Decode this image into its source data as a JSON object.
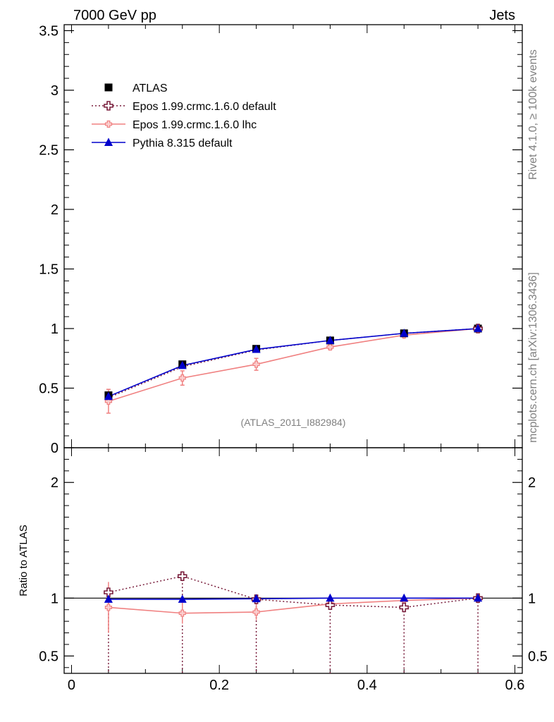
{
  "header": {
    "left": "7000 GeV pp",
    "right": "Jets"
  },
  "side_labels": {
    "rivet": "Rivet 4.1.0, ≥ 100k events",
    "mcplots": "mcplots.cern.ch [arXiv:1306.3436]"
  },
  "analysis_tag": "(ATLAS_2011_I882984)",
  "colors": {
    "atlas": "#000000",
    "epos_default": "#7a1f3d",
    "epos_lhc": "#f08080",
    "pythia": "#0000cc"
  },
  "chart_data": [
    {
      "type": "line",
      "panel": "main",
      "title": "",
      "xlabel": "",
      "ylabel": "",
      "xlim": [
        -0.01,
        0.61
      ],
      "ylim": [
        0,
        3.55
      ],
      "y_ticks": [
        0,
        0.5,
        1,
        1.5,
        2,
        2.5,
        3,
        3.5
      ],
      "y_tick_labels": [
        "0",
        "0.5",
        "1",
        "1.5",
        "2",
        "2.5",
        "3",
        "3.5"
      ],
      "x": [
        0.05,
        0.15,
        0.25,
        0.35,
        0.45,
        0.55
      ],
      "legend_position": "top-left",
      "series": [
        {
          "name": "ATLAS",
          "style": "data-square",
          "values": [
            0.44,
            0.7,
            0.83,
            0.9,
            0.96,
            1.0
          ],
          "errors": [
            0.02,
            0.02,
            0.015,
            0.01,
            0.01,
            0.0
          ]
        },
        {
          "name": "Epos 1.99.crmc.1.6.0 default",
          "style": "open-cross-dotted",
          "values": [
            0.42,
            0.68,
            0.82,
            0.9,
            0.96,
            1.0
          ],
          "errors": [
            0.0,
            0.0,
            0.0,
            0.0,
            0.0,
            0.0
          ]
        },
        {
          "name": "Epos 1.99.crmc.1.6.0 lhc",
          "style": "small-cross-solid",
          "values": [
            0.39,
            0.585,
            0.7,
            0.845,
            0.945,
            1.0
          ],
          "errors": [
            0.1,
            0.06,
            0.05,
            0.02,
            0.015,
            0.0
          ]
        },
        {
          "name": "Pythia 8.315 default",
          "style": "triangle-solid",
          "values": [
            0.43,
            0.69,
            0.825,
            0.9,
            0.96,
            1.0
          ],
          "errors": [
            0.0,
            0.0,
            0.0,
            0.0,
            0.0,
            0.0
          ]
        }
      ]
    },
    {
      "type": "line",
      "panel": "ratio",
      "ylabel": "Ratio to ATLAS",
      "xlim": [
        -0.01,
        0.61
      ],
      "ylim": [
        0.35,
        2.3
      ],
      "x_ticks": [
        0,
        0.2,
        0.4,
        0.6
      ],
      "x_tick_labels": [
        "0",
        "0.2",
        "0.4",
        "0.6"
      ],
      "y_ticks": [
        0.5,
        1,
        2
      ],
      "y_tick_labels": [
        "0.5",
        "1",
        "2"
      ],
      "x": [
        0.05,
        0.15,
        0.25,
        0.35,
        0.45,
        0.55
      ],
      "series": [
        {
          "name": "Epos 1.99.crmc.1.6.0 default",
          "style": "open-cross-dotted",
          "values": [
            1.05,
            1.19,
            0.99,
            0.94,
            0.92,
            1.0
          ],
          "err_low": [
            0.7,
            1.0,
            0.7,
            0.7,
            0.7,
            0.7
          ],
          "err_high": [
            0.0,
            0.0,
            0.0,
            0.0,
            0.0,
            0.0
          ]
        },
        {
          "name": "Epos 1.99.crmc.1.6.0 lhc",
          "style": "small-cross-solid",
          "values": [
            0.92,
            0.87,
            0.88,
            0.95,
            0.98,
            1.0
          ],
          "err_low": [
            0.22,
            0.09,
            0.07,
            0.02,
            0.015,
            0.0
          ],
          "err_high": [
            0.22,
            0.09,
            0.07,
            0.02,
            0.015,
            0.0
          ]
        },
        {
          "name": "Pythia 8.315 default",
          "style": "triangle-solid",
          "values": [
            0.99,
            0.99,
            0.995,
            1.0,
            1.0,
            1.0
          ],
          "err_low": [
            0,
            0,
            0,
            0,
            0,
            0
          ],
          "err_high": [
            0,
            0,
            0,
            0,
            0,
            0
          ]
        }
      ]
    }
  ]
}
